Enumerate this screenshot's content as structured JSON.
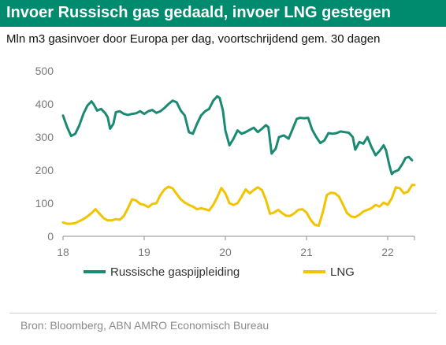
{
  "header": {
    "title": "Invoer Russisch gas gedaald, invoer LNG gestegen",
    "subtitle": "Mln m3 gasinvoer door Europa per dag, voortschrijdend gem. 30 dagen"
  },
  "footer": {
    "source": "Bron: Bloomberg, ABN AMRO Economisch Bureau"
  },
  "colors": {
    "title_bar": "#008a6e",
    "russian": "#1a8a73",
    "lng": "#f2c400"
  },
  "chart_data": {
    "type": "line",
    "title": "",
    "xlabel": "",
    "ylabel": "",
    "xlim": [
      18.0,
      22.33
    ],
    "ylim": [
      0,
      500
    ],
    "yticks": [
      "0",
      "100",
      "200",
      "300",
      "400",
      "500"
    ],
    "xticks": [
      "18",
      "19",
      "20",
      "21",
      "22"
    ],
    "grid": false,
    "legend_position": "bottom",
    "series": [
      {
        "name": "Russische gaspijpleiding",
        "color": "#1a8a73",
        "points": [
          [
            18.0,
            365
          ],
          [
            18.05,
            330
          ],
          [
            18.1,
            303
          ],
          [
            18.15,
            310
          ],
          [
            18.2,
            335
          ],
          [
            18.25,
            370
          ],
          [
            18.3,
            395
          ],
          [
            18.35,
            408
          ],
          [
            18.38,
            398
          ],
          [
            18.42,
            380
          ],
          [
            18.47,
            385
          ],
          [
            18.52,
            372
          ],
          [
            18.55,
            360
          ],
          [
            18.58,
            325
          ],
          [
            18.62,
            340
          ],
          [
            18.65,
            375
          ],
          [
            18.7,
            378
          ],
          [
            18.75,
            370
          ],
          [
            18.8,
            367
          ],
          [
            18.85,
            370
          ],
          [
            18.9,
            372
          ],
          [
            18.95,
            378
          ],
          [
            19.0,
            370
          ],
          [
            19.05,
            378
          ],
          [
            19.1,
            382
          ],
          [
            19.15,
            373
          ],
          [
            19.2,
            378
          ],
          [
            19.25,
            388
          ],
          [
            19.3,
            400
          ],
          [
            19.35,
            410
          ],
          [
            19.4,
            405
          ],
          [
            19.45,
            380
          ],
          [
            19.5,
            365
          ],
          [
            19.55,
            315
          ],
          [
            19.6,
            310
          ],
          [
            19.65,
            340
          ],
          [
            19.7,
            365
          ],
          [
            19.75,
            378
          ],
          [
            19.8,
            385
          ],
          [
            19.85,
            410
          ],
          [
            19.9,
            423
          ],
          [
            19.93,
            418
          ],
          [
            19.97,
            380
          ],
          [
            20.0,
            320
          ],
          [
            20.05,
            275
          ],
          [
            20.1,
            295
          ],
          [
            20.15,
            320
          ],
          [
            20.2,
            310
          ],
          [
            20.25,
            315
          ],
          [
            20.3,
            322
          ],
          [
            20.35,
            328
          ],
          [
            20.4,
            315
          ],
          [
            20.45,
            325
          ],
          [
            20.5,
            336
          ],
          [
            20.53,
            330
          ],
          [
            20.57,
            250
          ],
          [
            20.62,
            265
          ],
          [
            20.66,
            300
          ],
          [
            20.72,
            305
          ],
          [
            20.78,
            295
          ],
          [
            20.83,
            325
          ],
          [
            20.88,
            355
          ],
          [
            20.92,
            358
          ],
          [
            20.97,
            357
          ],
          [
            21.02,
            358
          ],
          [
            21.07,
            322
          ],
          [
            21.12,
            300
          ],
          [
            21.17,
            282
          ],
          [
            21.22,
            290
          ],
          [
            21.27,
            312
          ],
          [
            21.32,
            310
          ],
          [
            21.37,
            312
          ],
          [
            21.42,
            317
          ],
          [
            21.47,
            315
          ],
          [
            21.52,
            313
          ],
          [
            21.57,
            300
          ],
          [
            21.6,
            262
          ],
          [
            21.65,
            285
          ],
          [
            21.7,
            280
          ],
          [
            21.75,
            300
          ],
          [
            21.8,
            270
          ],
          [
            21.85,
            245
          ],
          [
            21.9,
            258
          ],
          [
            21.95,
            275
          ],
          [
            21.98,
            260
          ],
          [
            22.02,
            215
          ],
          [
            22.05,
            188
          ],
          [
            22.08,
            195
          ],
          [
            22.13,
            200
          ],
          [
            22.18,
            218
          ],
          [
            22.22,
            237
          ],
          [
            22.26,
            240
          ],
          [
            22.3,
            230
          ]
        ]
      },
      {
        "name": "LNG",
        "color": "#f2c400",
        "points": [
          [
            18.0,
            42
          ],
          [
            18.05,
            38
          ],
          [
            18.1,
            38
          ],
          [
            18.15,
            40
          ],
          [
            18.2,
            46
          ],
          [
            18.25,
            52
          ],
          [
            18.3,
            60
          ],
          [
            18.35,
            70
          ],
          [
            18.4,
            82
          ],
          [
            18.45,
            68
          ],
          [
            18.5,
            55
          ],
          [
            18.55,
            48
          ],
          [
            18.6,
            48
          ],
          [
            18.65,
            52
          ],
          [
            18.7,
            50
          ],
          [
            18.75,
            62
          ],
          [
            18.8,
            85
          ],
          [
            18.85,
            112
          ],
          [
            18.9,
            108
          ],
          [
            18.95,
            98
          ],
          [
            19.0,
            95
          ],
          [
            19.05,
            88
          ],
          [
            19.1,
            98
          ],
          [
            19.15,
            100
          ],
          [
            19.2,
            125
          ],
          [
            19.25,
            142
          ],
          [
            19.3,
            150
          ],
          [
            19.35,
            145
          ],
          [
            19.4,
            128
          ],
          [
            19.45,
            112
          ],
          [
            19.5,
            102
          ],
          [
            19.55,
            95
          ],
          [
            19.6,
            90
          ],
          [
            19.65,
            82
          ],
          [
            19.7,
            85
          ],
          [
            19.75,
            82
          ],
          [
            19.8,
            78
          ],
          [
            19.85,
            95
          ],
          [
            19.9,
            118
          ],
          [
            19.95,
            146
          ],
          [
            20.0,
            130
          ],
          [
            20.05,
            100
          ],
          [
            20.1,
            95
          ],
          [
            20.15,
            100
          ],
          [
            20.2,
            120
          ],
          [
            20.25,
            142
          ],
          [
            20.3,
            130
          ],
          [
            20.35,
            140
          ],
          [
            20.4,
            148
          ],
          [
            20.45,
            140
          ],
          [
            20.5,
            110
          ],
          [
            20.55,
            68
          ],
          [
            20.6,
            72
          ],
          [
            20.65,
            80
          ],
          [
            20.7,
            70
          ],
          [
            20.75,
            62
          ],
          [
            20.8,
            62
          ],
          [
            20.85,
            70
          ],
          [
            20.9,
            80
          ],
          [
            20.95,
            82
          ],
          [
            21.0,
            72
          ],
          [
            21.05,
            50
          ],
          [
            21.1,
            35
          ],
          [
            21.15,
            32
          ],
          [
            21.2,
            72
          ],
          [
            21.25,
            125
          ],
          [
            21.3,
            132
          ],
          [
            21.35,
            130
          ],
          [
            21.4,
            120
          ],
          [
            21.45,
            95
          ],
          [
            21.5,
            70
          ],
          [
            21.55,
            60
          ],
          [
            21.6,
            58
          ],
          [
            21.65,
            65
          ],
          [
            21.7,
            75
          ],
          [
            21.75,
            80
          ],
          [
            21.8,
            85
          ],
          [
            21.85,
            95
          ],
          [
            21.9,
            90
          ],
          [
            21.95,
            102
          ],
          [
            22.0,
            95
          ],
          [
            22.05,
            115
          ],
          [
            22.1,
            148
          ],
          [
            22.15,
            145
          ],
          [
            22.2,
            130
          ],
          [
            22.25,
            135
          ],
          [
            22.3,
            155
          ],
          [
            22.33,
            155
          ]
        ]
      }
    ]
  }
}
